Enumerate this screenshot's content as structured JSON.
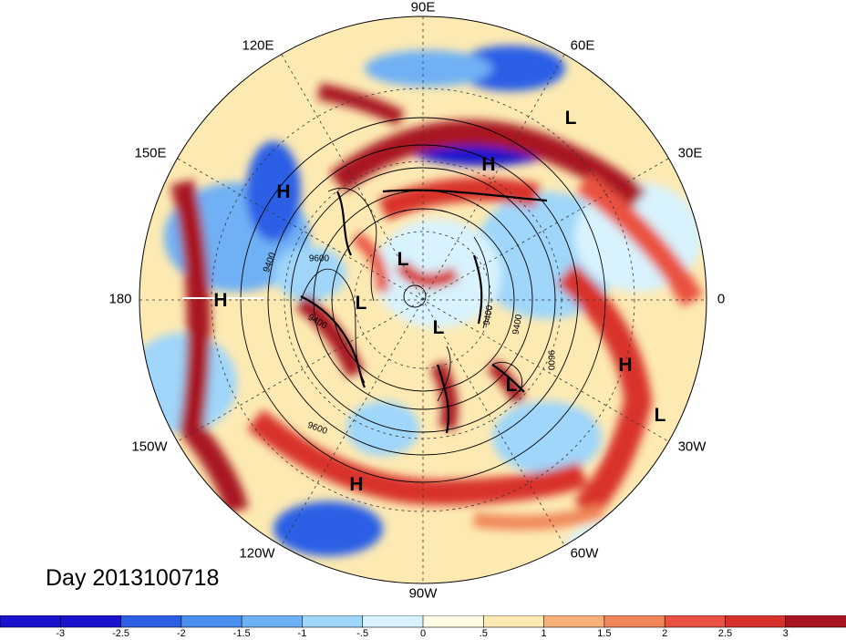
{
  "map": {
    "longitude_labels": [
      "90E",
      "60E",
      "30E",
      "0",
      "30W",
      "60W",
      "90W",
      "120W",
      "150W",
      "180",
      "150E",
      "120E"
    ],
    "pressure_centers": [
      "H",
      "H",
      "H",
      "H",
      "H",
      "L",
      "L",
      "L",
      "L",
      "L",
      "L"
    ],
    "contour_labels": [
      "9400",
      "9600",
      "9400",
      "9400",
      "9600",
      "9600",
      "9400"
    ],
    "date_label": "Day 2013100718"
  },
  "colorbar": {
    "ticks": [
      "-3",
      "-2.5",
      "-2",
      "-1.5",
      "-1",
      "-.5",
      "0",
      ".5",
      "1",
      "1.5",
      "2",
      "2.5",
      "3"
    ],
    "colors": [
      "#1a12cc",
      "#2c5fe6",
      "#4a8ef0",
      "#6fb1f5",
      "#9fd6fa",
      "#d8f3fd",
      "#fffbe4",
      "#fdeab3",
      "#f7b07a",
      "#f08658",
      "#ea5140",
      "#d8302b",
      "#a81520"
    ]
  }
}
